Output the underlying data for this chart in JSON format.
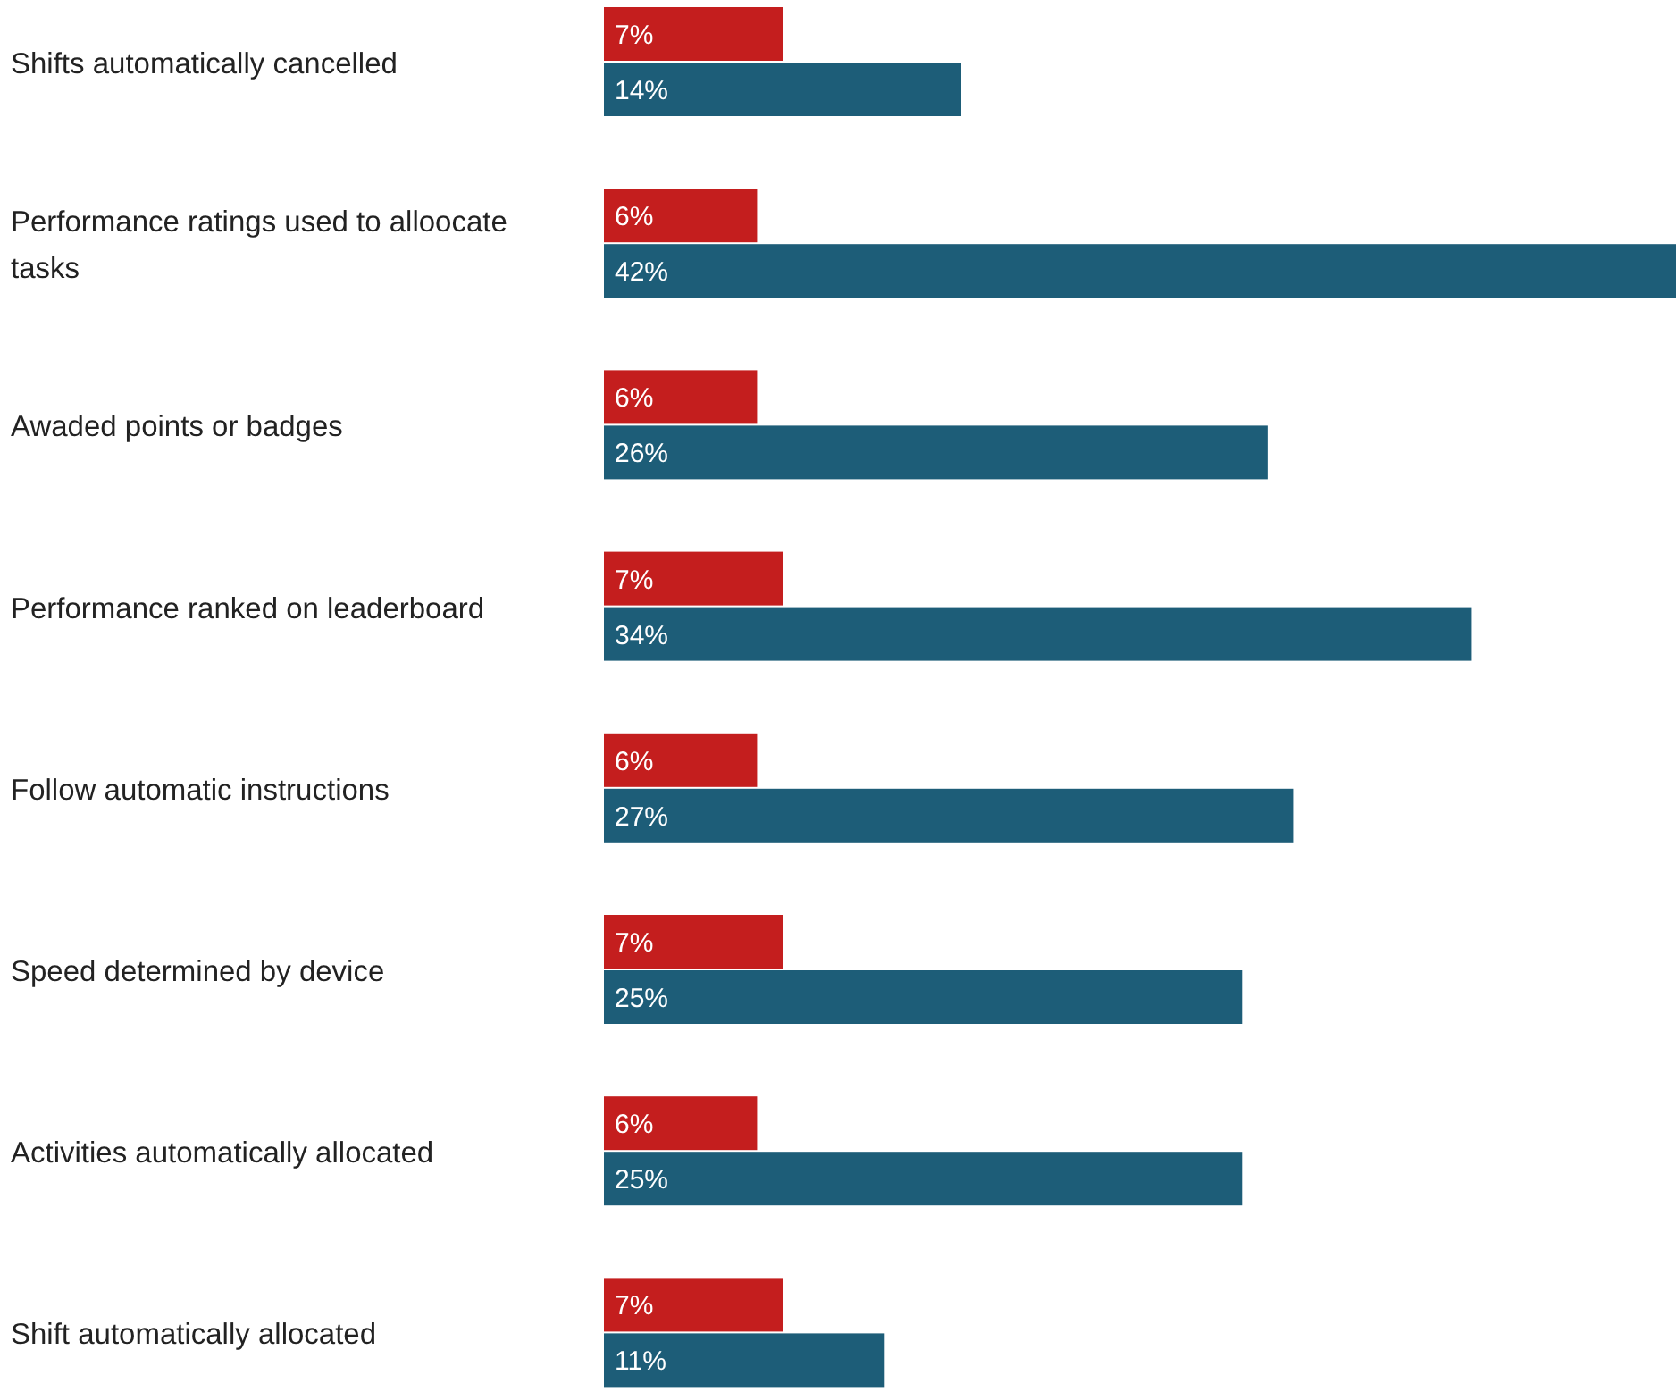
{
  "chart_data": {
    "type": "bar",
    "orientation": "horizontal",
    "categories": [
      "Shifts automatically cancelled",
      "Performance ratings used to alloocate tasks",
      "Awaded points or badges",
      "Performance ranked on leaderboard",
      "Follow automatic instructions",
      "Speed determined by device",
      "Activities automatically allocated",
      "Shift automatically allocated"
    ],
    "series": [
      {
        "color": "#c41e1e",
        "values": [
          7,
          6,
          6,
          7,
          6,
          7,
          6,
          7
        ],
        "value_labels": [
          "7%",
          "6%",
          "6%",
          "7%",
          "6%",
          "7%",
          "6%",
          "7%"
        ]
      },
      {
        "color": "#1d5d78",
        "values": [
          14,
          42,
          26,
          34,
          27,
          25,
          25,
          11
        ],
        "value_labels": [
          "14%",
          "42%",
          "26%",
          "34%",
          "27%",
          "25%",
          "25%",
          "11%"
        ]
      }
    ]
  }
}
